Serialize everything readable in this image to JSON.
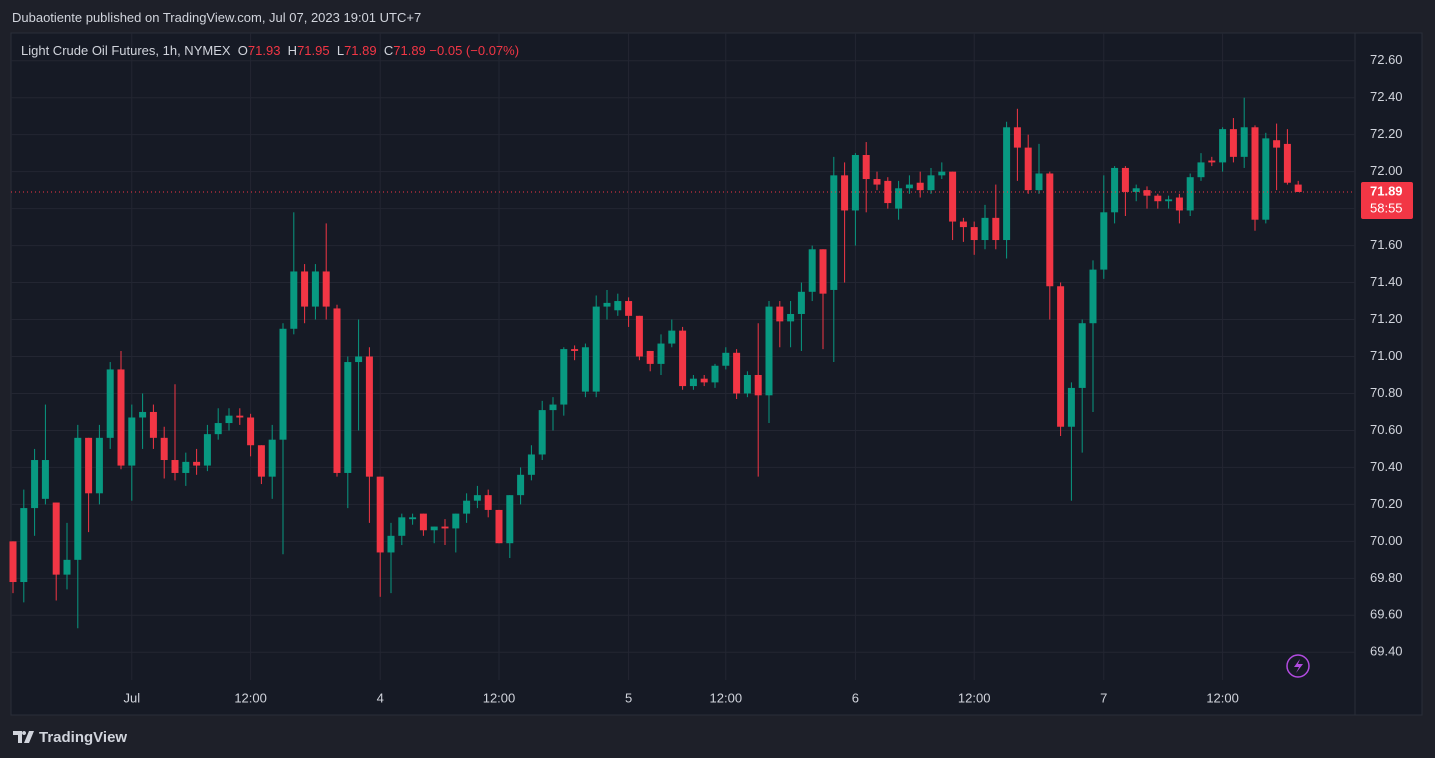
{
  "published": "Dubaotiente published on TradingView.com, Jul 07, 2023 19:01 UTC+7",
  "brand": "TradingView",
  "chart_data": {
    "type": "candlestick",
    "title": "Light Crude Oil Futures, 1h, NYMEX",
    "ohlc_labels": [
      "O",
      "H",
      "L",
      "C"
    ],
    "change": "−0.05 (−0.07%)",
    "countdown": "58:55",
    "up_color": "#089981",
    "down_color": "#f23645",
    "grid": true,
    "ylim": [
      69.25,
      72.75
    ],
    "yticks": [
      {
        "value": 69.4,
        "label": "69.40"
      },
      {
        "value": 69.6,
        "label": "69.60"
      },
      {
        "value": 69.8,
        "label": "69.80"
      },
      {
        "value": 70.0,
        "label": "70.00"
      },
      {
        "value": 70.2,
        "label": "70.20"
      },
      {
        "value": 70.4,
        "label": "70.40"
      },
      {
        "value": 70.6,
        "label": "70.60"
      },
      {
        "value": 70.8,
        "label": "70.80"
      },
      {
        "value": 71.0,
        "label": "71.00"
      },
      {
        "value": 71.2,
        "label": "71.20"
      },
      {
        "value": 71.4,
        "label": "71.40"
      },
      {
        "value": 71.6,
        "label": "71.60"
      },
      {
        "value": 71.8,
        "label": "71.80"
      },
      {
        "value": 72.0,
        "label": "72.00"
      },
      {
        "value": 72.2,
        "label": "72.20"
      },
      {
        "value": 72.4,
        "label": "72.40"
      },
      {
        "value": 72.6,
        "label": "72.60"
      }
    ],
    "categories": [
      null,
      null,
      null,
      null,
      null,
      null,
      null,
      null,
      null,
      null,
      null,
      "Jul",
      null,
      null,
      null,
      null,
      null,
      null,
      null,
      null,
      null,
      null,
      "12:00",
      null,
      null,
      null,
      null,
      null,
      null,
      null,
      null,
      null,
      null,
      null,
      "4",
      null,
      null,
      null,
      null,
      null,
      null,
      null,
      null,
      null,
      null,
      "12:00",
      null,
      null,
      null,
      null,
      null,
      null,
      null,
      null,
      null,
      null,
      null,
      "5",
      null,
      null,
      null,
      null,
      null,
      null,
      null,
      null,
      "12:00",
      null,
      null,
      null,
      null,
      null,
      null,
      null,
      null,
      null,
      null,
      null,
      "6",
      null,
      null,
      null,
      null,
      null,
      null,
      null,
      null,
      null,
      null,
      "12:00",
      null,
      null,
      null,
      null,
      null,
      null,
      null,
      null,
      null,
      null,
      null,
      "7",
      null,
      null,
      null,
      null,
      null,
      null,
      null,
      null,
      null,
      null,
      "12:00",
      null,
      null,
      null,
      null,
      null,
      null,
      null
    ],
    "open": [
      70.0,
      69.78,
      70.18,
      70.23,
      70.21,
      69.82,
      69.9,
      70.56,
      70.26,
      70.56,
      70.93,
      70.41,
      70.67,
      70.7,
      70.56,
      70.44,
      70.37,
      70.43,
      70.41,
      70.58,
      70.64,
      70.68,
      70.67,
      70.52,
      70.35,
      70.55,
      71.15,
      71.46,
      71.27,
      71.46,
      71.26,
      70.37,
      70.97,
      71.0,
      70.35,
      69.94,
      70.03,
      70.12,
      70.15,
      70.06,
      70.08,
      70.07,
      70.15,
      70.22,
      70.25,
      70.17,
      69.99,
      70.25,
      70.36,
      70.47,
      70.71,
      70.74,
      71.04,
      70.81,
      70.81,
      71.27,
      71.25,
      71.3,
      71.22,
      71.03,
      70.96,
      71.07,
      71.14,
      70.84,
      70.88,
      70.86,
      70.95,
      71.02,
      70.8,
      70.9,
      70.79,
      71.27,
      71.19,
      71.23,
      71.35,
      71.58,
      71.36,
      71.98,
      71.79,
      72.09,
      71.96,
      71.95,
      71.8,
      71.91,
      71.94,
      71.9,
      71.98,
      72.0,
      71.73,
      71.7,
      71.63,
      71.75,
      71.63,
      72.24,
      72.13,
      71.9,
      71.99,
      71.38,
      70.62,
      70.83,
      71.18,
      71.47,
      71.78,
      72.02,
      71.89,
      71.9,
      71.87,
      71.84,
      71.86,
      71.79,
      71.97,
      72.06,
      72.05,
      72.23,
      72.08,
      72.24,
      71.74,
      72.17,
      72.15,
      71.93
    ],
    "high": [
      70.0,
      70.28,
      70.5,
      70.74,
      70.21,
      70.1,
      70.63,
      70.56,
      70.63,
      70.97,
      71.03,
      70.74,
      70.8,
      70.74,
      70.62,
      70.85,
      70.48,
      70.5,
      70.63,
      70.72,
      70.72,
      70.72,
      70.69,
      70.52,
      70.63,
      71.18,
      71.78,
      71.5,
      71.5,
      71.72,
      71.28,
      71.0,
      71.2,
      71.05,
      70.35,
      70.1,
      70.15,
      70.15,
      70.15,
      70.08,
      70.12,
      70.15,
      70.26,
      70.3,
      70.28,
      70.17,
      70.25,
      70.4,
      70.52,
      70.76,
      70.78,
      71.05,
      71.06,
      71.07,
      71.33,
      71.36,
      71.34,
      71.32,
      71.22,
      71.03,
      71.12,
      71.2,
      71.16,
      70.9,
      70.9,
      70.96,
      71.05,
      71.04,
      70.92,
      71.18,
      71.3,
      71.3,
      71.3,
      71.4,
      71.6,
      71.58,
      72.08,
      72.05,
      72.1,
      72.16,
      72.0,
      71.97,
      71.95,
      71.98,
      72.0,
      72.02,
      72.05,
      72.0,
      71.75,
      71.73,
      71.82,
      71.93,
      72.27,
      72.34,
      72.2,
      72.15,
      72.0,
      71.4,
      70.86,
      71.2,
      71.52,
      71.98,
      72.03,
      72.03,
      71.93,
      71.92,
      71.88,
      71.87,
      71.88,
      71.99,
      72.1,
      72.08,
      72.24,
      72.29,
      72.4,
      72.25,
      72.21,
      72.26,
      72.23,
      71.95
    ],
    "low": [
      69.72,
      69.67,
      70.03,
      70.2,
      69.68,
      69.74,
      69.53,
      70.05,
      70.2,
      70.5,
      70.39,
      70.22,
      70.5,
      70.5,
      70.34,
      70.33,
      70.3,
      70.36,
      70.38,
      70.55,
      70.6,
      70.63,
      70.46,
      70.31,
      70.23,
      69.93,
      71.12,
      71.18,
      71.2,
      71.2,
      70.35,
      70.18,
      70.6,
      70.1,
      69.7,
      69.72,
      69.98,
      70.09,
      70.03,
      69.99,
      69.98,
      69.94,
      70.1,
      70.18,
      70.13,
      69.99,
      69.91,
      70.2,
      70.33,
      70.44,
      70.6,
      70.68,
      70.98,
      70.78,
      70.78,
      71.2,
      71.22,
      71.16,
      70.98,
      70.92,
      70.9,
      71.05,
      70.82,
      70.82,
      70.84,
      70.83,
      70.93,
      70.77,
      70.78,
      70.35,
      70.64,
      71.05,
      71.05,
      71.03,
      71.3,
      71.04,
      70.97,
      71.4,
      71.6,
      71.78,
      71.9,
      71.8,
      71.74,
      71.88,
      71.86,
      71.88,
      71.96,
      71.63,
      71.62,
      71.55,
      71.58,
      71.58,
      71.53,
      71.95,
      71.88,
      71.88,
      71.2,
      70.57,
      70.22,
      70.48,
      70.7,
      71.42,
      71.72,
      71.76,
      71.84,
      71.8,
      71.8,
      71.8,
      71.72,
      71.76,
      71.95,
      72.03,
      72.0,
      72.05,
      72.02,
      71.68,
      71.72,
      71.9,
      71.93,
      71.89
    ],
    "close": [
      69.78,
      70.18,
      70.44,
      70.44,
      69.82,
      69.9,
      70.56,
      70.26,
      70.56,
      70.93,
      70.41,
      70.67,
      70.7,
      70.56,
      70.44,
      70.37,
      70.43,
      70.41,
      70.58,
      70.64,
      70.68,
      70.67,
      70.52,
      70.35,
      70.55,
      71.15,
      71.46,
      71.27,
      71.46,
      71.27,
      70.37,
      70.97,
      71.0,
      70.35,
      69.94,
      70.03,
      70.13,
      70.13,
      70.06,
      70.08,
      70.07,
      70.15,
      70.22,
      70.25,
      70.17,
      69.99,
      70.25,
      70.36,
      70.47,
      70.71,
      70.74,
      71.04,
      71.03,
      71.05,
      71.27,
      71.29,
      71.3,
      71.22,
      71.0,
      70.96,
      71.07,
      71.14,
      70.84,
      70.88,
      70.86,
      70.95,
      71.02,
      70.8,
      70.9,
      70.79,
      71.27,
      71.19,
      71.23,
      71.35,
      71.58,
      71.34,
      71.98,
      71.79,
      72.09,
      71.96,
      71.93,
      71.83,
      71.91,
      71.93,
      71.9,
      71.98,
      72.0,
      71.73,
      71.7,
      71.63,
      71.75,
      71.63,
      72.24,
      72.13,
      71.9,
      71.99,
      71.38,
      70.62,
      70.83,
      71.18,
      71.47,
      71.78,
      72.02,
      71.89,
      71.91,
      71.87,
      71.84,
      71.85,
      71.79,
      71.97,
      72.05,
      72.05,
      72.23,
      72.08,
      72.24,
      71.74,
      72.18,
      72.13,
      71.94,
      71.89
    ]
  }
}
